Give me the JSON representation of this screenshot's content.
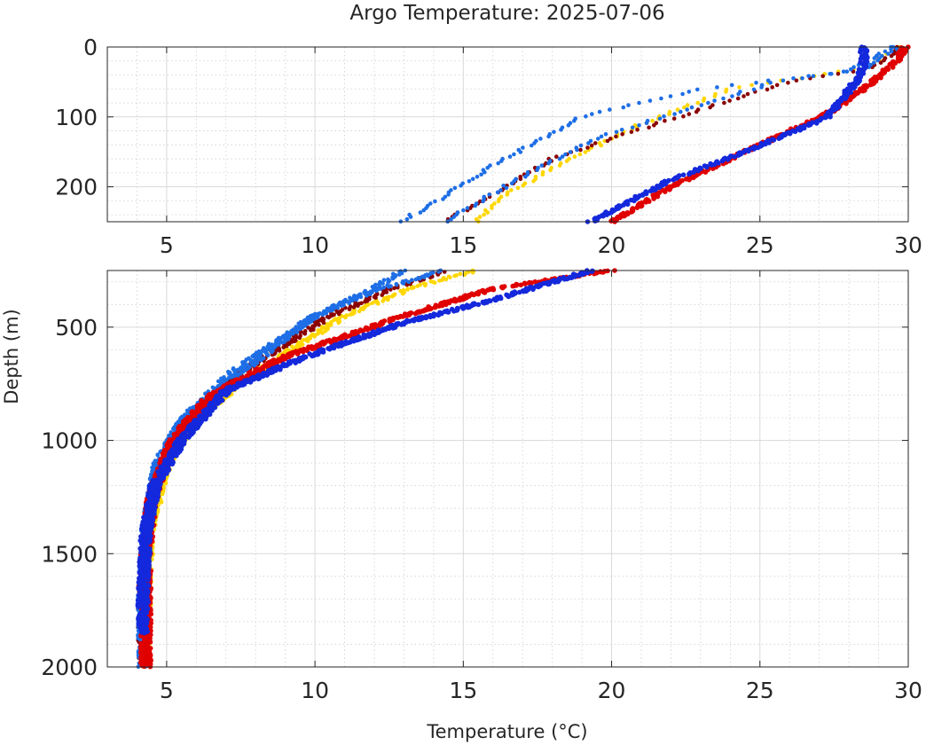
{
  "title": "Argo Temperature: 2025-07-06",
  "xlabel": "Temperature (°C)",
  "ylabel": "Depth (m)",
  "chart_data": {
    "type": "scatter",
    "title": "Argo Temperature: 2025-07-06",
    "xlabel": "Temperature (°C)",
    "ylabel": "Depth (m)",
    "xlim": [
      3,
      30
    ],
    "xticks": [
      5,
      10,
      15,
      20,
      25,
      30
    ],
    "grid": true,
    "panels": [
      {
        "name": "upper",
        "ylim": [
          0,
          250
        ],
        "yticks": [
          0,
          100,
          200
        ],
        "yreversed": true
      },
      {
        "name": "lower",
        "ylim": [
          250,
          2000
        ],
        "yticks": [
          500,
          1000,
          1500,
          2000
        ],
        "yreversed": true
      }
    ],
    "series": [
      {
        "color": "#ffd700",
        "dash": true,
        "points": [
          [
            29.8,
            0
          ],
          [
            28.5,
            30
          ],
          [
            24,
            60
          ],
          [
            21,
            110
          ],
          [
            18.6,
            160
          ],
          [
            16.5,
            210
          ],
          [
            15.4,
            250
          ],
          [
            13.2,
            330
          ],
          [
            11,
            450
          ],
          [
            8,
            700
          ],
          [
            6,
            900
          ],
          [
            5,
            1100
          ],
          [
            4.4,
            1400
          ],
          [
            4.3,
            1700
          ],
          [
            4.3,
            2000
          ]
        ]
      },
      {
        "color": "#8b0000",
        "dash": true,
        "points": [
          [
            29.7,
            0
          ],
          [
            28.8,
            30
          ],
          [
            26,
            50
          ],
          [
            21.5,
            110
          ],
          [
            18,
            160
          ],
          [
            16,
            210
          ],
          [
            14.4,
            250
          ],
          [
            12.6,
            330
          ],
          [
            10.5,
            450
          ],
          [
            7.5,
            700
          ],
          [
            5.8,
            900
          ],
          [
            4.8,
            1100
          ],
          [
            4.3,
            1400
          ],
          [
            4.2,
            1700
          ],
          [
            4.2,
            2000
          ]
        ]
      },
      {
        "color": "#1e6ee6",
        "dash": true,
        "points": [
          [
            29.6,
            0
          ],
          [
            28.7,
            30
          ],
          [
            25.5,
            50
          ],
          [
            22.5,
            90
          ],
          [
            19.5,
            130
          ],
          [
            16.8,
            190
          ],
          [
            14.4,
            250
          ],
          [
            12.2,
            330
          ],
          [
            10,
            450
          ],
          [
            7.2,
            700
          ],
          [
            5.6,
            900
          ],
          [
            4.7,
            1100
          ],
          [
            4.3,
            1400
          ],
          [
            4.2,
            1700
          ],
          [
            4.2,
            2000
          ]
        ]
      },
      {
        "color": "#1e6ee6",
        "dash": true,
        "points": [
          [
            29.5,
            0
          ],
          [
            28,
            35
          ],
          [
            23,
            60
          ],
          [
            19,
            100
          ],
          [
            16,
            170
          ],
          [
            14.5,
            210
          ],
          [
            12.9,
            250
          ],
          [
            12,
            330
          ],
          [
            10,
            450
          ],
          [
            7.5,
            700
          ],
          [
            5.6,
            900
          ],
          [
            4.7,
            1100
          ],
          [
            4.3,
            1400
          ],
          [
            4.2,
            1700
          ],
          [
            4.2,
            2000
          ]
        ]
      },
      {
        "color": "#e00000",
        "dash": false,
        "points": [
          [
            29.9,
            0
          ],
          [
            29.6,
            20
          ],
          [
            28.8,
            50
          ],
          [
            27.5,
            90
          ],
          [
            25,
            140
          ],
          [
            22,
            200
          ],
          [
            20,
            250
          ],
          [
            16,
            330
          ],
          [
            13,
            450
          ],
          [
            9,
            630
          ],
          [
            6.5,
            800
          ],
          [
            5.2,
            1000
          ],
          [
            4.5,
            1250
          ],
          [
            4.3,
            1500
          ],
          [
            4.3,
            1750
          ],
          [
            4.3,
            2000
          ]
        ]
      },
      {
        "color": "#1428dc",
        "dash": false,
        "points": [
          [
            28.5,
            0
          ],
          [
            28.5,
            20
          ],
          [
            28.4,
            40
          ],
          [
            27.3,
            100
          ],
          [
            24.5,
            150
          ],
          [
            22,
            190
          ],
          [
            19.3,
            250
          ],
          [
            16,
            380
          ],
          [
            13,
            480
          ],
          [
            9.5,
            640
          ],
          [
            7,
            780
          ],
          [
            5.5,
            1000
          ],
          [
            4.6,
            1200
          ],
          [
            4.3,
            1400
          ],
          [
            4.2,
            1700
          ],
          [
            4.2,
            1850
          ]
        ]
      }
    ]
  }
}
